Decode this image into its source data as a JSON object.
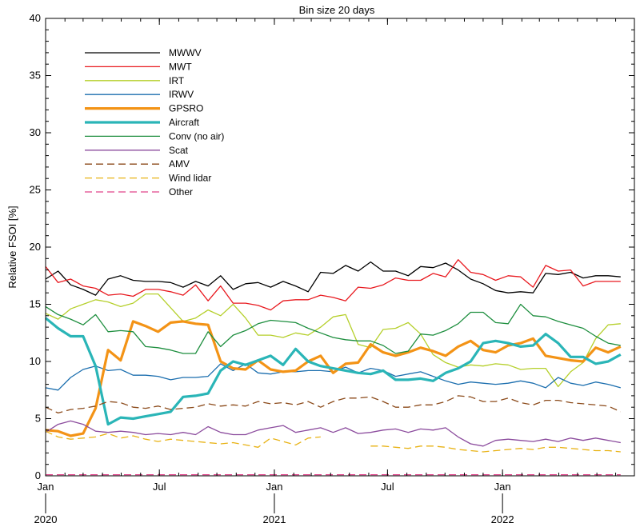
{
  "chart_data": {
    "type": "line",
    "title": "Bin size 20 days",
    "ylabel": "Relative FSOI [%]",
    "xlabel": "",
    "ylim": [
      0,
      40
    ],
    "yticks": [
      0,
      5,
      10,
      15,
      20,
      25,
      30,
      35,
      40
    ],
    "xlim": [
      "2020-01-01",
      "2022-07-31"
    ],
    "xticks": [
      {
        "date": "2020-01-01",
        "label": "Jan"
      },
      {
        "date": "2020-07-01",
        "label": "Jul"
      },
      {
        "date": "2021-01-01",
        "label": "Jan"
      },
      {
        "date": "2021-07-01",
        "label": "Jul"
      },
      {
        "date": "2022-01-01",
        "label": "Jan"
      }
    ],
    "year_labels": [
      {
        "date": "2020-01-01",
        "label": "2020"
      },
      {
        "date": "2021-01-01",
        "label": "2021"
      },
      {
        "date": "2022-01-01",
        "label": "2022"
      }
    ],
    "grid": false,
    "legend_position": "top-left",
    "x": [
      "2020-01-01",
      "2020-01-21",
      "2020-02-10",
      "2020-03-01",
      "2020-03-21",
      "2020-04-10",
      "2020-04-30",
      "2020-05-20",
      "2020-06-09",
      "2020-06-29",
      "2020-07-19",
      "2020-08-08",
      "2020-08-28",
      "2020-09-17",
      "2020-10-07",
      "2020-10-27",
      "2020-11-16",
      "2020-12-06",
      "2020-12-26",
      "2021-01-15",
      "2021-02-04",
      "2021-02-24",
      "2021-03-16",
      "2021-04-05",
      "2021-04-25",
      "2021-05-15",
      "2021-06-04",
      "2021-06-24",
      "2021-07-14",
      "2021-08-03",
      "2021-08-23",
      "2021-09-12",
      "2021-10-02",
      "2021-10-22",
      "2021-11-11",
      "2021-12-01",
      "2021-12-21",
      "2022-01-10",
      "2022-01-30",
      "2022-02-19",
      "2022-03-11",
      "2022-03-31",
      "2022-04-20",
      "2022-05-10",
      "2022-05-30",
      "2022-06-19",
      "2022-07-09"
    ],
    "series": [
      {
        "name": "MWWV",
        "color": "#000000",
        "width": 1.3,
        "dash": "",
        "values": [
          17.2,
          17.9,
          16.7,
          16.3,
          15.8,
          17.2,
          17.5,
          17.1,
          17.0,
          17.0,
          16.9,
          16.5,
          17.0,
          16.6,
          17.5,
          16.3,
          16.8,
          16.9,
          16.5,
          17.0,
          16.6,
          16.1,
          17.8,
          17.7,
          18.4,
          17.9,
          18.7,
          17.9,
          17.9,
          17.5,
          18.3,
          18.2,
          18.6,
          18.0,
          17.2,
          16.8,
          16.2,
          16.0,
          16.1,
          16.0,
          17.7,
          17.6,
          17.8,
          17.3,
          17.5,
          17.5,
          17.4
        ]
      },
      {
        "name": "MWT",
        "color": "#e8191f",
        "width": 1.3,
        "dash": "",
        "values": [
          18.3,
          16.9,
          17.2,
          16.6,
          16.4,
          15.8,
          15.9,
          15.7,
          16.3,
          16.3,
          16.1,
          15.8,
          16.7,
          15.3,
          16.6,
          15.1,
          15.1,
          14.9,
          14.5,
          15.3,
          15.4,
          15.4,
          15.8,
          15.6,
          15.3,
          16.5,
          16.4,
          16.7,
          17.3,
          17.1,
          17.1,
          17.7,
          17.4,
          18.9,
          17.8,
          17.6,
          17.1,
          17.5,
          17.4,
          16.5,
          18.4,
          17.9,
          18.0,
          16.6,
          17.0,
          17.0,
          17.0
        ]
      },
      {
        "name": "IRT",
        "color": "#b5cf2a",
        "width": 1.3,
        "dash": "",
        "values": [
          14.2,
          13.7,
          14.6,
          15.0,
          15.4,
          15.2,
          14.8,
          15.1,
          15.9,
          15.9,
          14.7,
          13.5,
          13.8,
          14.5,
          14.0,
          15.0,
          13.8,
          12.3,
          12.3,
          12.1,
          12.5,
          12.3,
          13.0,
          13.9,
          14.1,
          11.5,
          11.2,
          12.8,
          12.9,
          13.4,
          12.4,
          10.6,
          9.9,
          9.5,
          9.7,
          9.6,
          9.8,
          9.7,
          9.3,
          9.4,
          9.4,
          7.8,
          9.1,
          9.9,
          12.0,
          13.2,
          13.3
        ]
      },
      {
        "name": "IRWV",
        "color": "#1b6eae",
        "width": 1.3,
        "dash": "",
        "values": [
          7.7,
          7.5,
          8.6,
          9.3,
          9.6,
          9.2,
          9.3,
          8.8,
          8.8,
          8.7,
          8.4,
          8.6,
          8.6,
          8.7,
          9.8,
          9.2,
          9.8,
          9.0,
          8.9,
          9.1,
          9.1,
          9.2,
          9.2,
          9.1,
          9.5,
          9.0,
          9.4,
          9.2,
          8.7,
          8.9,
          9.1,
          8.7,
          8.3,
          8.0,
          8.2,
          8.1,
          8.0,
          8.1,
          8.3,
          8.1,
          7.7,
          8.6,
          8.1,
          7.9,
          8.2,
          8.0,
          7.7
        ]
      },
      {
        "name": "GPSRO",
        "color": "#f39316",
        "width": 3.2,
        "dash": "",
        "values": [
          4.0,
          3.9,
          3.5,
          3.7,
          5.9,
          11.0,
          10.1,
          13.5,
          13.1,
          12.6,
          13.4,
          13.5,
          13.3,
          13.2,
          10.0,
          9.4,
          9.3,
          10.1,
          9.3,
          9.1,
          9.2,
          10.0,
          10.5,
          9.0,
          9.8,
          9.9,
          11.5,
          10.8,
          10.5,
          10.8,
          11.2,
          10.9,
          10.5,
          11.3,
          11.8,
          11.0,
          10.8,
          11.4,
          11.6,
          12.0,
          10.5,
          10.3,
          10.1,
          10.0,
          11.2,
          10.8,
          11.3
        ]
      },
      {
        "name": "Aircraft",
        "color": "#2ab5b7",
        "width": 3.2,
        "dash": "",
        "values": [
          13.8,
          12.9,
          12.2,
          12.2,
          9.6,
          4.5,
          5.1,
          5.0,
          5.2,
          5.4,
          5.6,
          6.9,
          7.0,
          7.2,
          9.2,
          10.0,
          9.7,
          10.1,
          10.5,
          9.7,
          11.1,
          10.0,
          9.6,
          9.4,
          9.2,
          9.0,
          8.9,
          9.2,
          8.4,
          8.4,
          8.5,
          8.3,
          9.0,
          9.4,
          10.0,
          11.6,
          11.8,
          11.6,
          11.3,
          11.4,
          12.4,
          11.6,
          10.4,
          10.4,
          9.8,
          10.0,
          10.6
        ]
      },
      {
        "name": "Conv (no air)",
        "color": "#1d8e3e",
        "width": 1.3,
        "dash": "",
        "values": [
          14.8,
          14.1,
          13.7,
          13.2,
          14.1,
          12.6,
          12.7,
          12.6,
          11.3,
          11.2,
          11.0,
          10.7,
          10.7,
          12.6,
          11.3,
          12.3,
          12.7,
          13.3,
          13.6,
          13.5,
          13.4,
          12.9,
          12.5,
          12.1,
          11.9,
          11.8,
          11.8,
          11.4,
          10.7,
          10.9,
          12.4,
          12.3,
          12.7,
          13.3,
          14.3,
          14.3,
          13.4,
          13.3,
          15.0,
          14.0,
          13.9,
          13.5,
          13.2,
          12.9,
          12.2,
          11.6,
          11.4
        ]
      },
      {
        "name": "Scat",
        "color": "#8b4b9d",
        "width": 1.3,
        "dash": "",
        "values": [
          3.8,
          4.5,
          4.8,
          4.5,
          3.9,
          3.8,
          3.9,
          3.8,
          3.6,
          3.7,
          3.6,
          3.8,
          3.6,
          4.3,
          3.8,
          3.6,
          3.6,
          4.0,
          4.2,
          4.4,
          3.8,
          4.0,
          4.2,
          3.8,
          4.2,
          3.7,
          3.8,
          4.0,
          4.1,
          3.8,
          4.1,
          4.0,
          4.2,
          3.4,
          2.8,
          2.6,
          3.1,
          3.2,
          3.1,
          3.0,
          3.2,
          3.0,
          3.3,
          3.1,
          3.3,
          3.1,
          2.9
        ]
      },
      {
        "name": "AMV",
        "color": "#8b4a1a",
        "width": 1.3,
        "dash": "9,5",
        "values": [
          6.0,
          5.5,
          5.8,
          5.9,
          6.1,
          6.5,
          6.4,
          6.0,
          5.9,
          6.1,
          5.8,
          5.9,
          6.0,
          6.3,
          6.1,
          6.2,
          6.1,
          6.5,
          6.3,
          6.4,
          6.2,
          6.5,
          6.0,
          6.5,
          6.8,
          6.8,
          6.9,
          6.5,
          6.0,
          6.0,
          6.2,
          6.2,
          6.5,
          7.0,
          6.9,
          6.5,
          6.5,
          6.8,
          6.4,
          6.2,
          6.6,
          6.6,
          6.4,
          6.3,
          6.2,
          6.1,
          5.6
        ]
      },
      {
        "name": "Wind lidar",
        "color": "#e8b214",
        "width": 1.3,
        "dash": "9,5",
        "values": [
          3.9,
          3.4,
          3.2,
          3.3,
          3.4,
          3.7,
          3.3,
          3.5,
          3.2,
          3.0,
          3.2,
          3.1,
          3.0,
          2.9,
          2.8,
          2.9,
          2.7,
          2.5,
          3.3,
          3.0,
          2.7,
          3.3,
          3.4,
          null,
          null,
          null,
          2.6,
          2.6,
          2.5,
          2.4,
          2.6,
          2.6,
          2.5,
          2.3,
          2.2,
          2.1,
          2.2,
          2.3,
          2.4,
          2.3,
          2.5,
          2.5,
          2.4,
          2.3,
          2.2,
          2.2,
          2.1
        ]
      },
      {
        "name": "Other",
        "color": "#e0438a",
        "width": 1.3,
        "dash": "9,5",
        "values": [
          0.1,
          0.1,
          0.1,
          0.1,
          0.1,
          0.1,
          0.1,
          0.1,
          0.1,
          0.1,
          0.1,
          0.1,
          0.1,
          0.1,
          0.1,
          0.1,
          0.1,
          0.1,
          0.1,
          0.1,
          0.1,
          0.1,
          0.1,
          0.1,
          0.1,
          0.1,
          0.1,
          0.1,
          0.1,
          0.1,
          0.1,
          0.1,
          0.1,
          0.1,
          0.1,
          0.1,
          0.1,
          0.1,
          0.1,
          0.1,
          0.1,
          0.1,
          0.1,
          0.1,
          0.1,
          0.1,
          0.1
        ]
      }
    ]
  }
}
